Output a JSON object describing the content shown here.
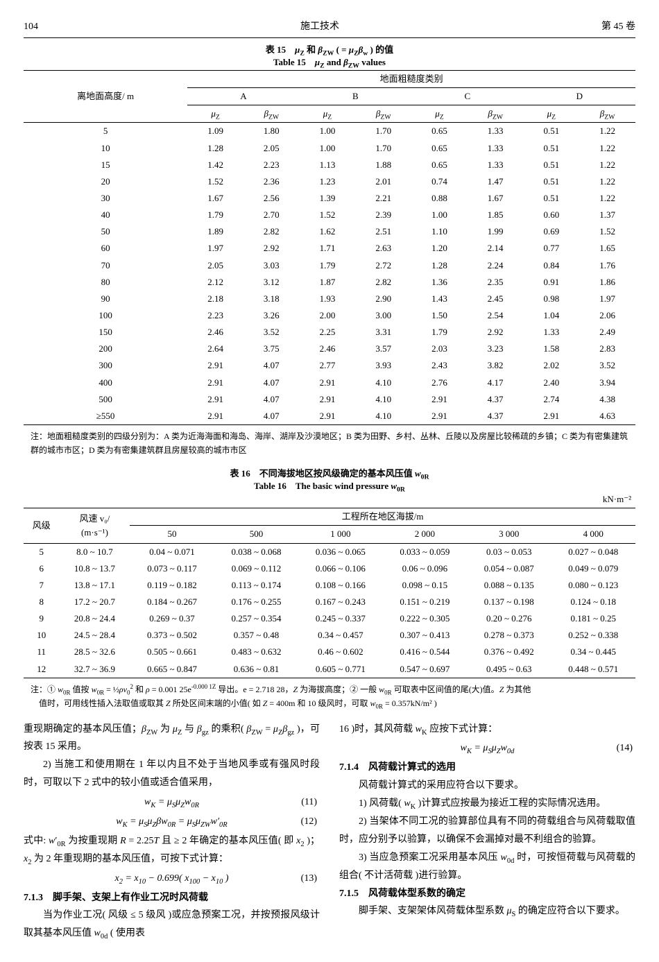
{
  "header": {
    "page": "104",
    "title": "施工技术",
    "issue": "第 45 卷"
  },
  "table15": {
    "caption_cn": "表 15　μ_Z 和 β_ZW ( = μ_Z β_w ) 的值",
    "caption_en": "Table 15　μ_Z and β_ZW values",
    "corner_label": "离地面高度/ m",
    "group_label": "地面粗糙度类别",
    "groups": [
      "A",
      "B",
      "C",
      "D"
    ],
    "sub_headers": [
      "μ_Z",
      "β_ZW"
    ],
    "heights": [
      "5",
      "10",
      "15",
      "20",
      "30",
      "40",
      "50",
      "60",
      "70",
      "80",
      "90",
      "100",
      "150",
      "200",
      "300",
      "400",
      "500",
      "≥550"
    ],
    "rows": [
      [
        "1.09",
        "1.80",
        "1.00",
        "1.70",
        "0.65",
        "1.33",
        "0.51",
        "1.22"
      ],
      [
        "1.28",
        "2.05",
        "1.00",
        "1.70",
        "0.65",
        "1.33",
        "0.51",
        "1.22"
      ],
      [
        "1.42",
        "2.23",
        "1.13",
        "1.88",
        "0.65",
        "1.33",
        "0.51",
        "1.22"
      ],
      [
        "1.52",
        "2.36",
        "1.23",
        "2.01",
        "0.74",
        "1.47",
        "0.51",
        "1.22"
      ],
      [
        "1.67",
        "2.56",
        "1.39",
        "2.21",
        "0.88",
        "1.67",
        "0.51",
        "1.22"
      ],
      [
        "1.79",
        "2.70",
        "1.52",
        "2.39",
        "1.00",
        "1.85",
        "0.60",
        "1.37"
      ],
      [
        "1.89",
        "2.82",
        "1.62",
        "2.51",
        "1.10",
        "1.99",
        "0.69",
        "1.52"
      ],
      [
        "1.97",
        "2.92",
        "1.71",
        "2.63",
        "1.20",
        "2.14",
        "0.77",
        "1.65"
      ],
      [
        "2.05",
        "3.03",
        "1.79",
        "2.72",
        "1.28",
        "2.24",
        "0.84",
        "1.76"
      ],
      [
        "2.12",
        "3.12",
        "1.87",
        "2.82",
        "1.36",
        "2.35",
        "0.91",
        "1.86"
      ],
      [
        "2.18",
        "3.18",
        "1.93",
        "2.90",
        "1.43",
        "2.45",
        "0.98",
        "1.97"
      ],
      [
        "2.23",
        "3.26",
        "2.00",
        "3.00",
        "1.50",
        "2.54",
        "1.04",
        "2.06"
      ],
      [
        "2.46",
        "3.52",
        "2.25",
        "3.31",
        "1.79",
        "2.92",
        "1.33",
        "2.49"
      ],
      [
        "2.64",
        "3.75",
        "2.46",
        "3.57",
        "2.03",
        "3.23",
        "1.58",
        "2.83"
      ],
      [
        "2.91",
        "4.07",
        "2.77",
        "3.93",
        "2.43",
        "3.82",
        "2.02",
        "3.52"
      ],
      [
        "2.91",
        "4.07",
        "2.91",
        "4.10",
        "2.76",
        "4.17",
        "2.40",
        "3.94"
      ],
      [
        "2.91",
        "4.07",
        "2.91",
        "4.10",
        "2.91",
        "4.37",
        "2.74",
        "4.38"
      ],
      [
        "2.91",
        "4.07",
        "2.91",
        "4.10",
        "2.91",
        "4.37",
        "2.91",
        "4.63"
      ]
    ],
    "note": "注：地面粗糙度类别的四级分别为：A 类为近海海面和海岛、海岸、湖岸及沙漠地区；B 类为田野、乡村、丛林、丘陵以及房屋比较稀疏的乡镇；C 类为有密集建筑群的城市市区；D 类为有密集建筑群且房屋较高的城市市区"
  },
  "table16": {
    "caption_cn": "表 16　不同海拔地区按风级确定的基本风压值 w_0R",
    "caption_en": "Table 16　The basic wind pressure w_0R",
    "unit": "kN·m⁻²",
    "col1_label": "风级",
    "col2_label_l1": "风速 v₀/",
    "col2_label_l2": "(m·s⁻¹)",
    "group_label": "工程所在地区海拔/m",
    "alt_cols": [
      "50",
      "500",
      "1 000",
      "2 000",
      "3 000",
      "4 000"
    ],
    "levels": [
      "5",
      "6",
      "7",
      "8",
      "9",
      "10",
      "11",
      "12"
    ],
    "speeds": [
      "8.0 ~ 10.7",
      "10.8 ~ 13.7",
      "13.8 ~ 17.1",
      "17.2 ~ 20.7",
      "20.8 ~ 24.4",
      "24.5 ~ 28.4",
      "28.5 ~ 32.6",
      "32.7 ~ 36.9"
    ],
    "rows": [
      [
        "0.04 ~ 0.071",
        "0.038 ~ 0.068",
        "0.036 ~ 0.065",
        "0.033 ~ 0.059",
        "0.03 ~ 0.053",
        "0.027 ~ 0.048"
      ],
      [
        "0.073 ~ 0.117",
        "0.069 ~ 0.112",
        "0.066 ~ 0.106",
        "0.06 ~ 0.096",
        "0.054 ~ 0.087",
        "0.049 ~ 0.079"
      ],
      [
        "0.119 ~ 0.182",
        "0.113 ~ 0.174",
        "0.108 ~ 0.166",
        "0.098 ~ 0.15",
        "0.088 ~ 0.135",
        "0.080 ~ 0.123"
      ],
      [
        "0.184 ~ 0.267",
        "0.176 ~ 0.255",
        "0.167 ~ 0.243",
        "0.151 ~ 0.219",
        "0.137 ~ 0.198",
        "0.124 ~ 0.18"
      ],
      [
        "0.269 ~ 0.37",
        "0.257 ~ 0.354",
        "0.245 ~ 0.337",
        "0.222 ~ 0.305",
        "0.20 ~ 0.276",
        "0.181 ~ 0.25"
      ],
      [
        "0.373 ~ 0.502",
        "0.357 ~ 0.48",
        "0.34 ~ 0.457",
        "0.307 ~ 0.413",
        "0.278 ~ 0.373",
        "0.252 ~ 0.338"
      ],
      [
        "0.505 ~ 0.661",
        "0.483 ~ 0.632",
        "0.46 ~ 0.602",
        "0.416 ~ 0.544",
        "0.376 ~ 0.492",
        "0.34 ~ 0.445"
      ],
      [
        "0.665 ~ 0.847",
        "0.636 ~ 0.81",
        "0.605 ~ 0.771",
        "0.547 ~ 0.697",
        "0.495 ~ 0.63",
        "0.448 ~ 0.571"
      ]
    ],
    "note": "注：① w_0R 值按 w_0R = ½ρv₀² 和 ρ = 0.001 25e^(-0.000 1Z) 导出。e = 2.718 28，Z 为海拔高度；② 一般 w_0R 可取表中区间值的尾(大)值。Z 为其他值时，可用线性插入法取值或取其 Z 所处区间末端的小值( 如 Z = 400m 和 10 级风时，可取 w_0R = 0.357kN/m² )"
  },
  "body": {
    "p01": "重现期确定的基本风压值；β_ZW 为 μ_Z 与 β_gz 的乘积( β_ZW = μ_Z β_gz )，可按表 15 采用。",
    "p02": "2) 当施工和使用期在 1 年以内且不处于当地风季或有强风时段时，可取以下 2 式中的较小值或适合值采用，",
    "eq11": "w_K = μ_S μ_Z w_0R",
    "eq11n": "(11)",
    "eq12": "w_K = μ_S μ_Z β w_0R = μ_S μ_ZW w′_0R",
    "eq12n": "(12)",
    "p03": "式中: w′_0R 为按重现期 R = 2.25T 且 ≥ 2 年确定的基本风压值( 即 x₂ )；x₂ 为 2 年重现期的基本风压值，可按下式计算：",
    "eq13": "x₂ = x₁₀ − 0.699( x₁₀₀ − x₁₀ )",
    "eq13n": "(13)",
    "h713": "7.1.3　脚手架、支架上有作业工况时风荷载",
    "p04": "当为作业工况( 风级 ≤ 5 级风 )或应急预案工况，并按预报风级计取其基本风压值 w_0d ( 使用表",
    "p05": "16 )时，其风荷载 w_K 应按下式计算：",
    "eq14": "w_K = μ_S μ_Z w_0d",
    "eq14n": "(14)",
    "h714": "7.1.4　风荷载计算式的选用",
    "p06": "风荷载计算式的采用应符合以下要求。",
    "p07": "1) 风荷载( w_K )计算式应按最为接近工程的实际情况选用。",
    "p08": "2) 当架体不同工况的验算部位具有不同的荷载组合与风荷载取值时，应分别予以验算，以确保不会漏掉对最不利组合的验算。",
    "p09": "3) 当应急预案工况采用基本风压 w_0d 时，可按恒荷载与风荷载的组合( 不计活荷载 )进行验算。",
    "h715": "7.1.5　风荷载体型系数的确定",
    "p10": "脚手架、支架架体风荷载体型系数 μ_S 的确定应符合以下要求。"
  }
}
